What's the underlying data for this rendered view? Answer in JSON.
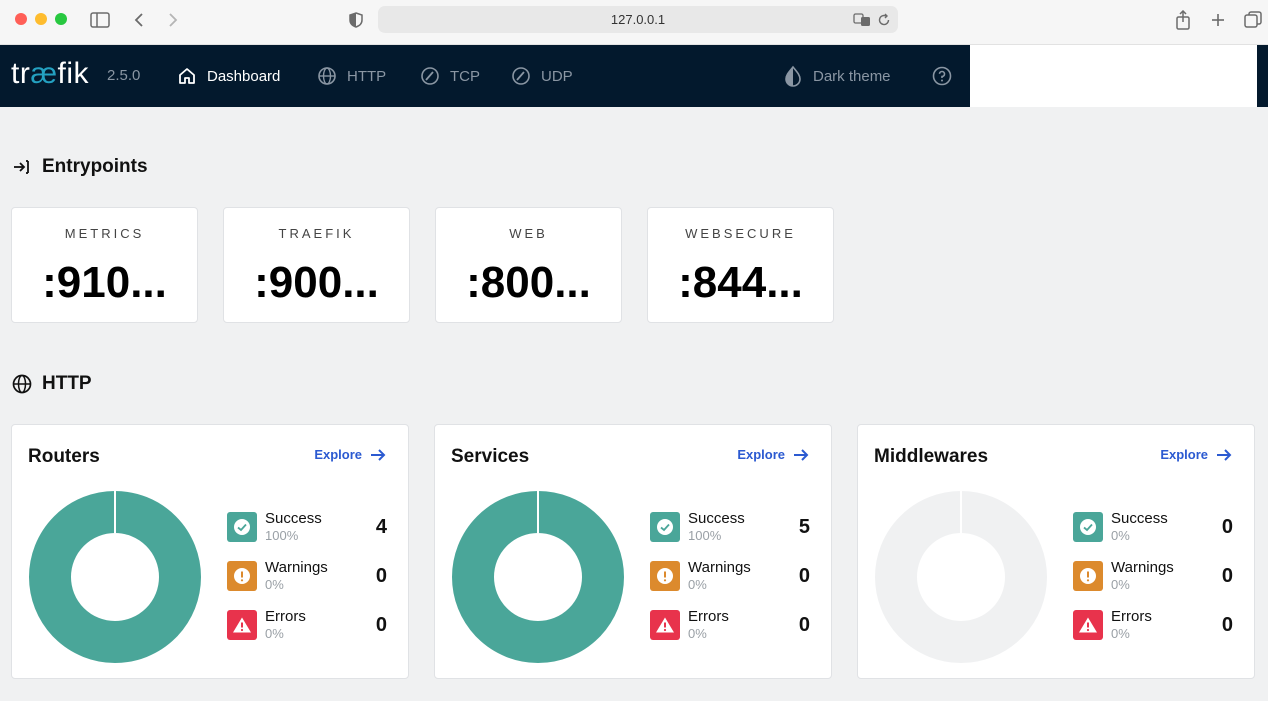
{
  "browser": {
    "url": "127.0.0.1"
  },
  "app": {
    "logo": {
      "before": "tr",
      "ae": "æ",
      "after": "fik"
    },
    "version": "2.5.0",
    "nav": [
      {
        "label": "Dashboard",
        "icon": "home-icon",
        "active": true
      },
      {
        "label": "HTTP",
        "icon": "globe-icon"
      },
      {
        "label": "TCP",
        "icon": "speedometer-icon"
      },
      {
        "label": "UDP",
        "icon": "speedometer-icon"
      }
    ],
    "theme_label": "Dark theme"
  },
  "entrypoints": {
    "title": "Entrypoints",
    "items": [
      {
        "name": "METRICS",
        "port": ":910..."
      },
      {
        "name": "TRAEFIK",
        "port": ":900..."
      },
      {
        "name": "WEB",
        "port": ":800..."
      },
      {
        "name": "WEBSECURE",
        "port": ":844..."
      }
    ]
  },
  "http": {
    "title": "HTTP",
    "explore_label": "Explore",
    "colors": {
      "success": "#4aa699",
      "warning": "#dc8a2d",
      "error": "#e8334c",
      "empty": "#f0f1f2"
    },
    "cards": [
      {
        "title": "Routers",
        "stats": [
          {
            "label": "Success",
            "pct": "100%",
            "count": "4"
          },
          {
            "label": "Warnings",
            "pct": "0%",
            "count": "0"
          },
          {
            "label": "Errors",
            "pct": "0%",
            "count": "0"
          }
        ]
      },
      {
        "title": "Services",
        "stats": [
          {
            "label": "Success",
            "pct": "100%",
            "count": "5"
          },
          {
            "label": "Warnings",
            "pct": "0%",
            "count": "0"
          },
          {
            "label": "Errors",
            "pct": "0%",
            "count": "0"
          }
        ]
      },
      {
        "title": "Middlewares",
        "stats": [
          {
            "label": "Success",
            "pct": "0%",
            "count": "0"
          },
          {
            "label": "Warnings",
            "pct": "0%",
            "count": "0"
          },
          {
            "label": "Errors",
            "pct": "0%",
            "count": "0"
          }
        ]
      }
    ]
  }
}
